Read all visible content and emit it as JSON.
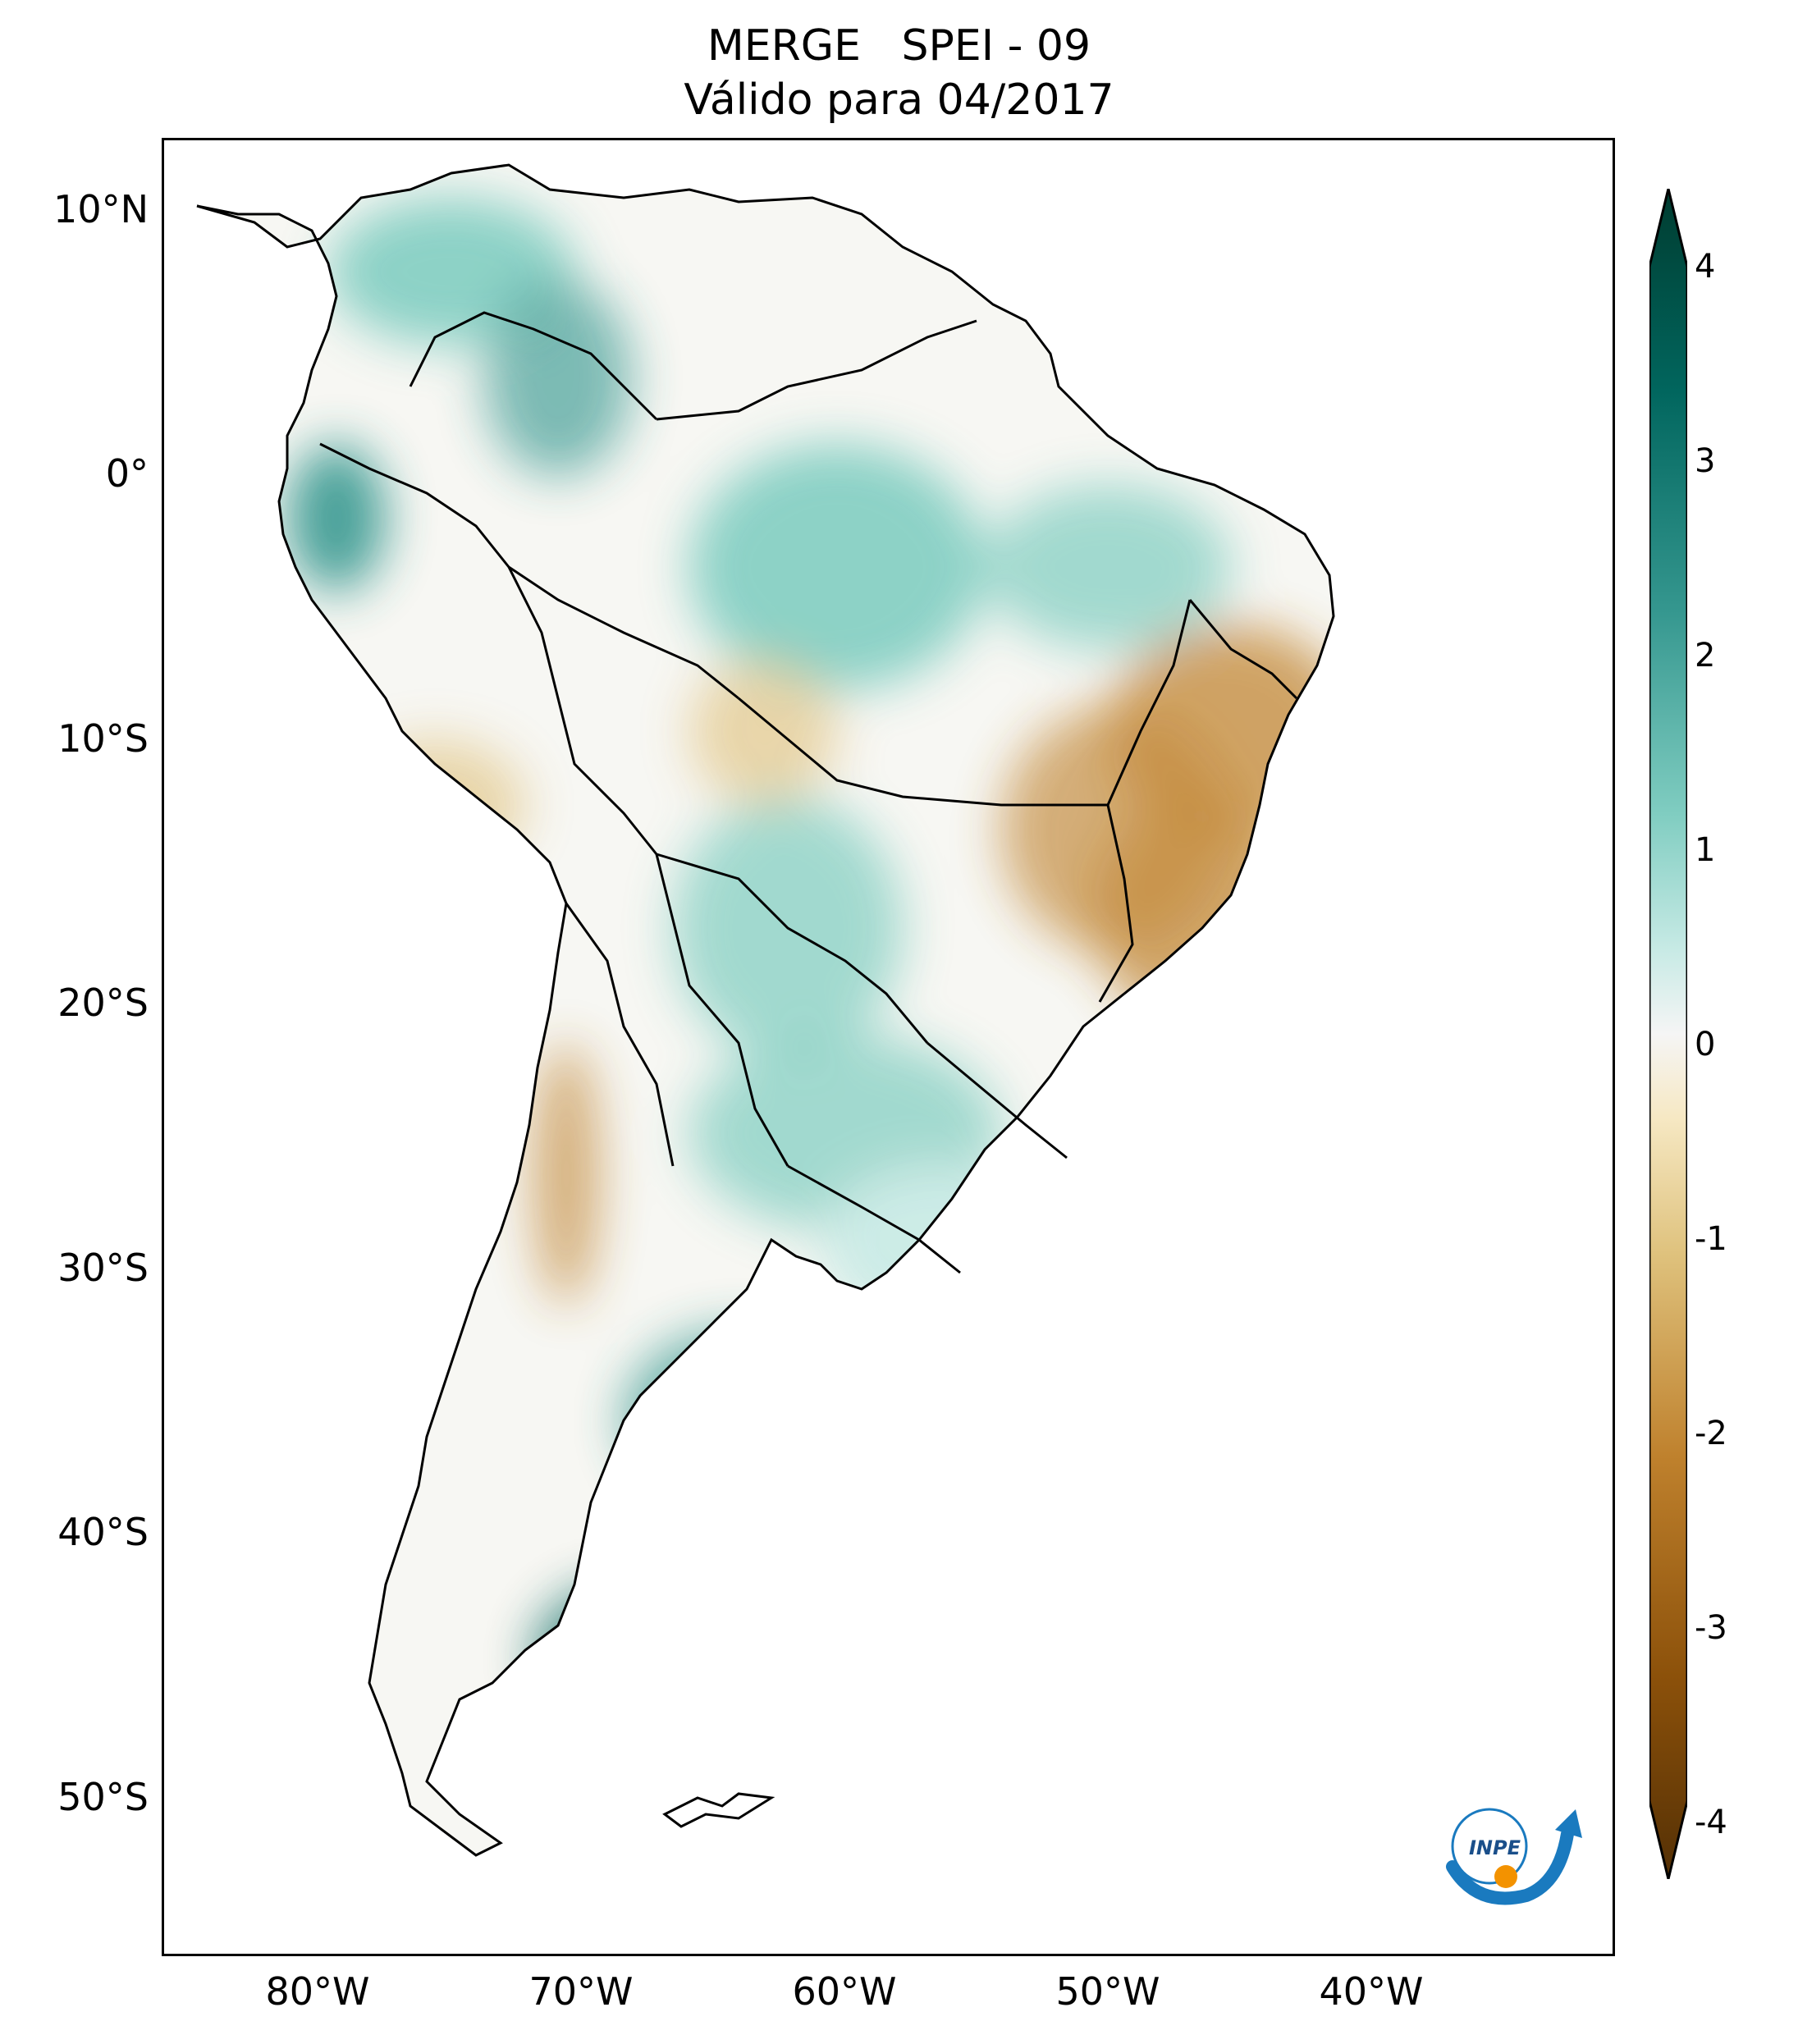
{
  "title": {
    "line1": "MERGE   SPEI - 09",
    "line2": "Válido para 04/2017"
  },
  "latitude_labels": [
    "10°N",
    "0°",
    "10°S",
    "20°S",
    "30°S",
    "40°S",
    "50°S"
  ],
  "longitude_labels": [
    "80°W",
    "70°W",
    "60°W",
    "50°W",
    "40°W"
  ],
  "colorbar": {
    "ticks": [
      "4",
      "3",
      "2",
      "1",
      "0",
      "-1",
      "-2",
      "-3",
      "-4"
    ],
    "min": -4,
    "max": 4,
    "colors": {
      "dark_brown": "#543005",
      "brown": "#8c510a",
      "tan": "#bf812d",
      "light_tan": "#dfc27d",
      "cream": "#f6e8c3",
      "white": "#f5f5f5",
      "light_teal": "#c7eae5",
      "teal": "#80cdc1",
      "dark_teal": "#35978f",
      "deep_teal": "#01665e",
      "darkest_teal": "#003c30"
    }
  },
  "logo": {
    "text": "INPE",
    "arrow_color": "#1a7abf",
    "dot_color": "#f39200"
  }
}
